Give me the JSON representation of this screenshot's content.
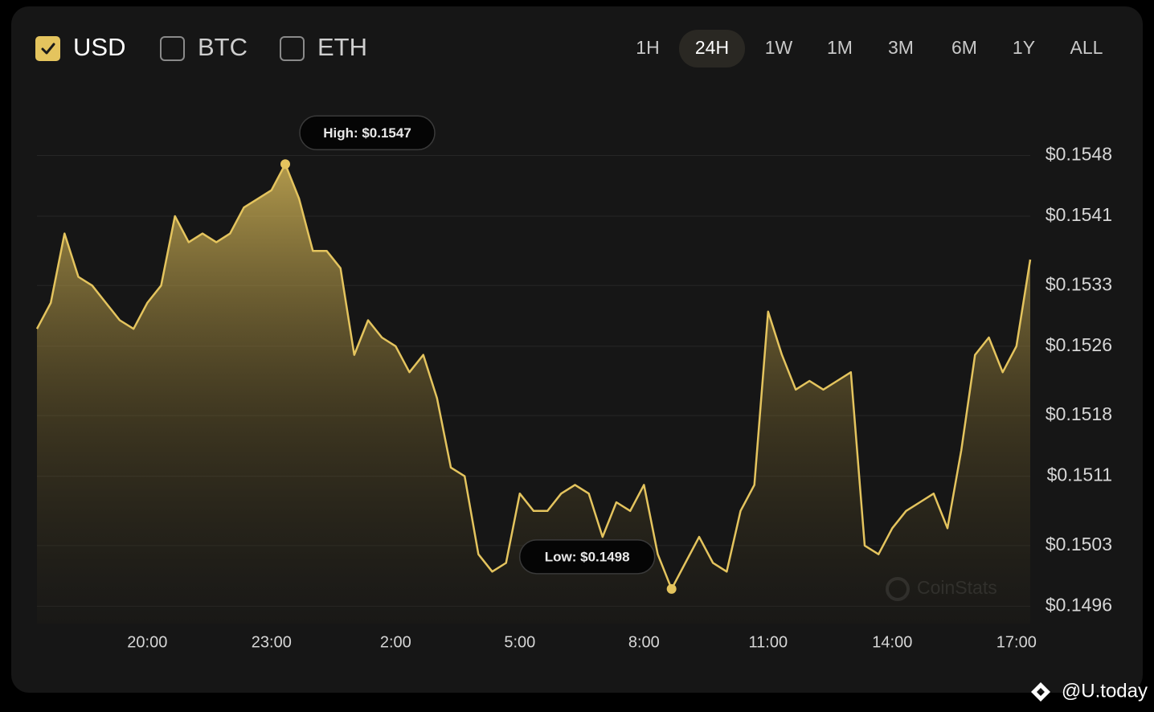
{
  "currencies": [
    {
      "label": "USD",
      "checked": true
    },
    {
      "label": "BTC",
      "checked": false
    },
    {
      "label": "ETH",
      "checked": false
    }
  ],
  "ranges": [
    "1H",
    "24H",
    "1W",
    "1M",
    "3M",
    "6M",
    "1Y",
    "ALL"
  ],
  "selected_range": "24H",
  "watermarks": {
    "chart": "CoinStats",
    "page": "@U.today"
  },
  "chart_data": {
    "type": "area",
    "color": "#e4c45e",
    "grid": true,
    "x": [
      "17:20",
      "17:40",
      "18:00",
      "18:20",
      "18:40",
      "19:00",
      "19:20",
      "19:40",
      "20:00",
      "20:20",
      "20:40",
      "21:00",
      "21:20",
      "21:40",
      "22:00",
      "22:20",
      "22:40",
      "23:00",
      "23:20",
      "23:40",
      "0:00",
      "0:20",
      "0:40",
      "1:00",
      "1:20",
      "1:40",
      "2:00",
      "2:20",
      "2:40",
      "3:00",
      "3:20",
      "3:40",
      "4:00",
      "4:20",
      "4:40",
      "5:00",
      "5:20",
      "5:40",
      "6:00",
      "6:20",
      "6:40",
      "7:00",
      "7:20",
      "7:40",
      "8:00",
      "8:20",
      "8:40",
      "9:00",
      "9:20",
      "9:40",
      "10:00",
      "10:20",
      "10:40",
      "11:00",
      "11:20",
      "11:40",
      "12:00",
      "12:20",
      "12:40",
      "13:00",
      "13:20",
      "13:40",
      "14:00",
      "14:20",
      "14:40",
      "15:00",
      "15:20",
      "15:40",
      "16:00",
      "16:20",
      "16:40",
      "17:00",
      "17:20"
    ],
    "series": [
      {
        "name": "USD",
        "color": "#e4c45e",
        "values": [
          0.1528,
          0.1531,
          0.1539,
          0.1534,
          0.1533,
          0.1531,
          0.1529,
          0.1528,
          0.1531,
          0.1533,
          0.1541,
          0.1538,
          0.1539,
          0.1538,
          0.1539,
          0.1542,
          0.1543,
          0.1544,
          0.1547,
          0.1543,
          0.1537,
          0.1537,
          0.1535,
          0.1525,
          0.1529,
          0.1527,
          0.1526,
          0.1523,
          0.1525,
          0.152,
          0.1512,
          0.1511,
          0.1502,
          0.15,
          0.1501,
          0.1509,
          0.1507,
          0.1507,
          0.1509,
          0.151,
          0.1509,
          0.1504,
          0.1508,
          0.1507,
          0.151,
          0.1502,
          0.1498,
          0.1501,
          0.1504,
          0.1501,
          0.15,
          0.1507,
          0.151,
          0.153,
          0.1525,
          0.1521,
          0.1522,
          0.1521,
          0.1522,
          0.1523,
          0.1503,
          0.1502,
          0.1505,
          0.1507,
          0.1508,
          0.1509,
          0.1505,
          0.1514,
          0.1525,
          0.1527,
          0.1523,
          0.1526,
          0.1536
        ]
      }
    ],
    "xticks": [
      "20:00",
      "23:00",
      "2:00",
      "5:00",
      "8:00",
      "11:00",
      "14:00",
      "17:00"
    ],
    "ylim": [
      0.1494,
      0.1555
    ],
    "yticks": [
      {
        "value": 0.1548,
        "label": "$0.1548"
      },
      {
        "value": 0.1541,
        "label": "$0.1541"
      },
      {
        "value": 0.1533,
        "label": "$0.1533"
      },
      {
        "value": 0.1526,
        "label": "$0.1526"
      },
      {
        "value": 0.1518,
        "label": "$0.1518"
      },
      {
        "value": 0.1511,
        "label": "$0.1511"
      },
      {
        "value": 0.1503,
        "label": "$0.1503"
      },
      {
        "value": 0.1496,
        "label": "$0.1496"
      }
    ],
    "annotations": [
      {
        "text": "High: $0.1547",
        "x": "23:20",
        "value": 0.1547
      },
      {
        "text": "Low: $0.1498",
        "x": "8:40",
        "value": 0.1498
      }
    ]
  }
}
